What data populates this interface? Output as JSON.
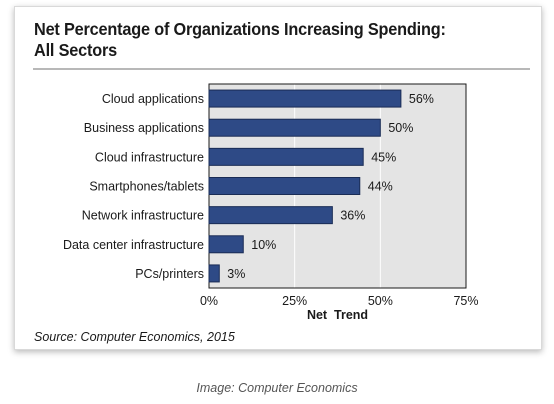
{
  "card": {
    "title_line1": "Net Percentage of Organizations Increasing Spending:",
    "title_line2": "All Sectors",
    "source": "Source: Computer Economics, 2015"
  },
  "caption": "Image: Computer Economics",
  "chart_data": {
    "type": "bar",
    "orientation": "horizontal",
    "title": "Net Percentage of Organizations Increasing Spending: All Sectors",
    "categories": [
      "Cloud applications",
      "Business applications",
      "Cloud infrastructure",
      "Smartphones/tablets",
      "Network infrastructure",
      "Data center infrastructure",
      "PCs/printers"
    ],
    "values": [
      56,
      50,
      45,
      44,
      36,
      10,
      3
    ],
    "value_labels": [
      "56%",
      "50%",
      "45%",
      "44%",
      "36%",
      "10%",
      "3%"
    ],
    "xlabel": "Net  Trend",
    "ylabel": "",
    "xlim": [
      0,
      75
    ],
    "xticks": [
      0,
      25,
      50,
      75
    ],
    "xtick_labels": [
      "0%",
      "25%",
      "50%",
      "75%"
    ],
    "grid": true,
    "colors": {
      "bar": "#2e4a86",
      "bar_border": "#1a2c55",
      "plot_bg": "#e4e4e4"
    }
  }
}
